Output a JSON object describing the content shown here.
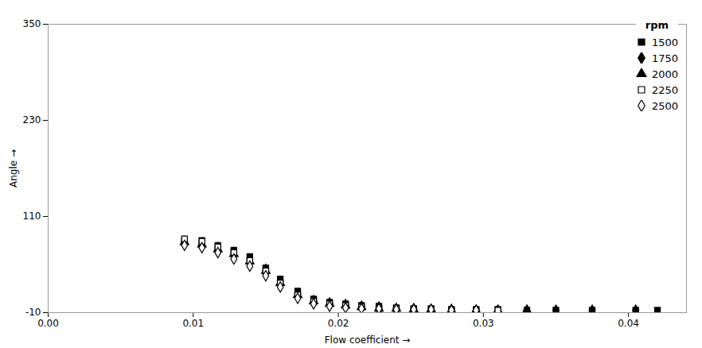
{
  "chart_data": {
    "type": "scatter",
    "xlabel": "Flow coefficient",
    "ylabel": "Angle",
    "xlim": [
      0.0,
      0.044
    ],
    "ylim": [
      -10,
      350
    ],
    "xticks": [
      {
        "value": 0.0,
        "label": "0.00"
      },
      {
        "value": 0.01,
        "label": "0.01"
      },
      {
        "value": 0.02,
        "label": "0.02"
      },
      {
        "value": 0.03,
        "label": "0.03"
      },
      {
        "value": 0.04,
        "label": "0.04"
      }
    ],
    "yticks": [
      -10,
      110,
      230,
      350
    ],
    "grid": false,
    "legend": "upper right",
    "legend_title": "rpm",
    "series": [
      {
        "name": "1500",
        "marker": "square",
        "filled": true,
        "color": "black",
        "x": [
          0.0094,
          0.0106,
          0.0117,
          0.0128,
          0.0139,
          0.015,
          0.016,
          0.0172,
          0.0183,
          0.0194,
          0.0205,
          0.0216,
          0.0228,
          0.024,
          0.0252,
          0.0264,
          0.0278,
          0.0295,
          0.031,
          0.033,
          0.035,
          0.0375,
          0.0405,
          0.042
        ],
        "values": [
          80,
          80,
          74,
          68,
          60,
          46,
          32,
          17,
          7,
          3,
          1,
          -1,
          -2,
          -4,
          -5,
          -5,
          -6,
          -6,
          -6,
          -7,
          -7,
          -7,
          -7,
          -7
        ]
      },
      {
        "name": "1750",
        "marker": "diamond",
        "filled": true,
        "color": "black",
        "x": [
          0.0094,
          0.0106,
          0.0117,
          0.0128,
          0.0139,
          0.015,
          0.016,
          0.0172,
          0.0183,
          0.0194,
          0.0205,
          0.0216,
          0.0228,
          0.024,
          0.0252,
          0.0264,
          0.0278,
          0.0295,
          0.031,
          0.033,
          0.035,
          0.0375,
          0.0405
        ],
        "values": [
          79,
          77,
          71,
          65,
          57,
          44,
          29,
          14,
          5,
          2,
          0,
          -2,
          -3,
          -5,
          -5,
          -6,
          -6,
          -7,
          -7,
          -7,
          -7,
          -7,
          -7
        ]
      },
      {
        "name": "2000",
        "marker": "triangle",
        "filled": true,
        "color": "black",
        "x": [
          0.0094,
          0.0106,
          0.0117,
          0.0128,
          0.0139,
          0.015,
          0.016,
          0.0172,
          0.0183,
          0.0194,
          0.0205,
          0.0216,
          0.0228,
          0.024,
          0.0252,
          0.0264,
          0.0278,
          0.0295,
          0.031,
          0.033
        ],
        "values": [
          78,
          75,
          69,
          63,
          54,
          42,
          27,
          12,
          4,
          1,
          -1,
          -3,
          -5,
          -5,
          -6,
          -6,
          -7,
          -7,
          -7,
          -7
        ]
      },
      {
        "name": "2250",
        "marker": "square",
        "filled": false,
        "color": "black",
        "x": [
          0.0094,
          0.0106,
          0.0117,
          0.0128,
          0.0139,
          0.015,
          0.016,
          0.0172,
          0.0183,
          0.0194,
          0.0205,
          0.0216,
          0.0228,
          0.024,
          0.0252,
          0.0264,
          0.0278,
          0.0295,
          0.031
        ],
        "values": [
          82,
          79,
          72,
          65,
          55,
          42,
          27,
          12,
          4,
          1,
          -1,
          -3,
          -5,
          -5,
          -6,
          -6,
          -7,
          -7,
          -7
        ]
      },
      {
        "name": "2500",
        "marker": "diamond",
        "filled": false,
        "color": "black",
        "x": [
          0.0094,
          0.0106,
          0.0117,
          0.0128,
          0.0139,
          0.015,
          0.016,
          0.0172,
          0.0183,
          0.0194,
          0.0205,
          0.0216,
          0.0228,
          0.024,
          0.0252,
          0.0264,
          0.0278,
          0.0295
        ],
        "values": [
          74,
          71,
          65,
          57,
          48,
          36,
          22,
          8,
          1,
          -2,
          -4,
          -5,
          -5,
          -6,
          -6,
          -6,
          -7,
          -7
        ]
      }
    ]
  }
}
